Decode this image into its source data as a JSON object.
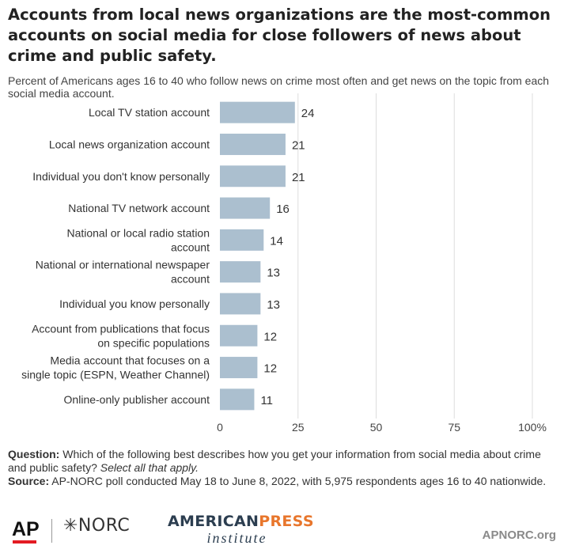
{
  "title": "Accounts from local news organizations are the most-common accounts on social media for close followers of news about crime and public safety.",
  "subtitle": "Percent of Americans ages 16 to 40 who follow news on crime most often and get news on the topic from each social media account.",
  "chart_data": {
    "type": "bar",
    "orientation": "horizontal",
    "categories": [
      [
        "Local TV station account"
      ],
      [
        "Local news organization account"
      ],
      [
        "Individual you don't know personally"
      ],
      [
        "National TV network account"
      ],
      [
        "National or local radio station",
        "account"
      ],
      [
        "National or international newspaper",
        "account"
      ],
      [
        "Individual you know personally"
      ],
      [
        "Account from publications that focus",
        "on specific populations"
      ],
      [
        "Media account that focuses on a",
        "single topic (ESPN, Weather Channel)"
      ],
      [
        "Online-only publisher account"
      ]
    ],
    "values": [
      24,
      21,
      21,
      16,
      14,
      13,
      13,
      12,
      12,
      11
    ],
    "xlim": [
      0,
      100
    ],
    "ticks": [
      0,
      25,
      50,
      75,
      100
    ],
    "tick_labels": [
      "0",
      "25",
      "50",
      "75",
      "100%"
    ],
    "bar_color": "#abbfcf",
    "grid": true
  },
  "notes": {
    "question_label": "Question:",
    "question_text": "Which of the following best describes how you get your information from social media about crime and public safety?",
    "question_italic": "Select all that apply.",
    "source_label": "Source:",
    "source_text": "AP-NORC poll conducted May 18 to June 8, 2022, with 5,975 respondents ages 16 to 40 nationwide."
  },
  "footer": {
    "ap_logo": "AP",
    "norc_logo": "✳NORC",
    "api_logo_part1": "AMERICAN",
    "api_logo_part2": "PRESS",
    "api_logo_bottom": "institute",
    "site": "APNORC.org"
  },
  "colors": {
    "bar": "#abbfcf",
    "grid": "#dddddd",
    "ap_red": "#e31b23",
    "api_orange": "#e8762c",
    "api_navy": "#2c3e50"
  }
}
